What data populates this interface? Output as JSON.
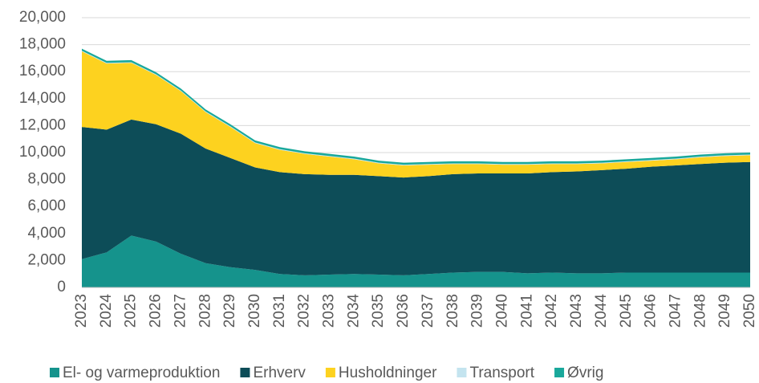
{
  "chart_data": {
    "type": "stacked_area",
    "categories": [
      "2023",
      "2024",
      "2025",
      "2026",
      "2027",
      "2028",
      "2029",
      "2030",
      "2031",
      "2032",
      "2033",
      "2034",
      "2035",
      "2036",
      "2037",
      "2038",
      "2039",
      "2040",
      "2041",
      "2042",
      "2043",
      "2044",
      "2045",
      "2046",
      "2047",
      "2048",
      "2049",
      "2050"
    ],
    "series": [
      {
        "name": "El- og varmeproduktion",
        "color": "#15938c",
        "values": [
          2100,
          2600,
          3850,
          3400,
          2500,
          1800,
          1500,
          1300,
          1000,
          900,
          950,
          1000,
          950,
          900,
          1000,
          1100,
          1150,
          1150,
          1050,
          1100,
          1050,
          1050,
          1100,
          1100,
          1100,
          1100,
          1100,
          1100
        ]
      },
      {
        "name": "Erhverv",
        "color": "#0d4d58",
        "values": [
          9800,
          9100,
          8600,
          8700,
          8900,
          8500,
          8100,
          7600,
          7550,
          7500,
          7400,
          7350,
          7300,
          7250,
          7250,
          7300,
          7300,
          7300,
          7400,
          7450,
          7550,
          7650,
          7700,
          7850,
          7950,
          8050,
          8150,
          8200
        ]
      },
      {
        "name": "Husholdninger",
        "color": "#fdd21f",
        "values": [
          5600,
          4900,
          4200,
          3650,
          3150,
          2700,
          2300,
          1800,
          1650,
          1500,
          1350,
          1150,
          950,
          900,
          850,
          750,
          700,
          650,
          650,
          600,
          550,
          500,
          500,
          450,
          450,
          500,
          500,
          500
        ]
      },
      {
        "name": "Transport",
        "color": "#c4e4ef",
        "values": [
          50,
          50,
          50,
          50,
          50,
          50,
          50,
          50,
          50,
          50,
          50,
          50,
          50,
          50,
          50,
          50,
          50,
          50,
          50,
          50,
          50,
          50,
          50,
          50,
          50,
          50,
          50,
          50
        ]
      },
      {
        "name": "Øvrig",
        "color": "#19a89b",
        "values": [
          150,
          150,
          150,
          150,
          150,
          150,
          150,
          150,
          150,
          150,
          150,
          150,
          150,
          150,
          150,
          150,
          150,
          150,
          150,
          150,
          150,
          150,
          150,
          150,
          150,
          150,
          150,
          150
        ]
      }
    ],
    "ylim": [
      0,
      20000
    ],
    "yticks": [
      0,
      {
        "value": 2000,
        "label": "2,000"
      },
      {
        "value": 4000,
        "label": "4,000"
      },
      {
        "value": 6000,
        "label": "6,000"
      },
      {
        "value": 8000,
        "label": "8,000"
      },
      {
        "value": 10000,
        "label": "10,000"
      },
      {
        "value": 12000,
        "label": "12,000"
      },
      {
        "value": 14000,
        "label": "14,000"
      },
      {
        "value": 16000,
        "label": "16,000"
      },
      {
        "value": 18000,
        "label": "18,000"
      },
      {
        "value": 20000,
        "label": "20,000"
      }
    ],
    "grid": true
  }
}
